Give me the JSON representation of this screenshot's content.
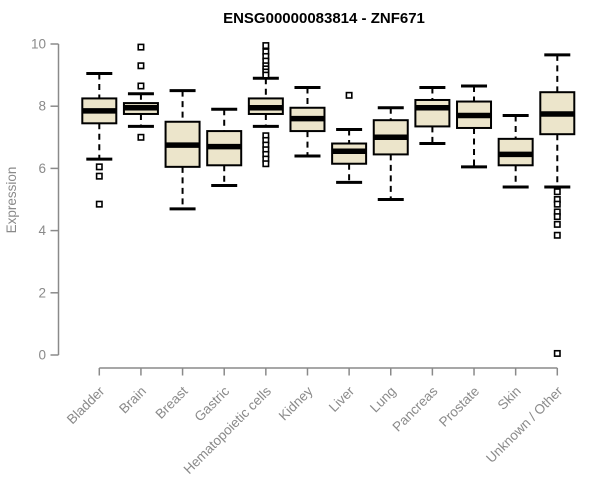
{
  "chart_data": {
    "type": "boxplot",
    "title": "ENSG00000083814 - ZNF671",
    "xlabel": "",
    "ylabel": "Expression",
    "ylim": [
      0,
      10
    ],
    "yticks": [
      0,
      2,
      4,
      6,
      8,
      10
    ],
    "grid": false,
    "legend": null,
    "categories": [
      "Bladder",
      "Brain",
      "Breast",
      "Gastric",
      "Hematopoietic cells",
      "Kidney",
      "Liver",
      "Lung",
      "Pancreas",
      "Prostate",
      "Skin",
      "Unknown / Other"
    ],
    "series": [
      {
        "name": "Bladder",
        "whisker_low": 6.3,
        "q1": 7.45,
        "median": 7.85,
        "q3": 8.25,
        "whisker_high": 9.05,
        "outliers": [
          6.05,
          5.75,
          4.85
        ]
      },
      {
        "name": "Brain",
        "whisker_low": 7.35,
        "q1": 7.75,
        "median": 7.95,
        "q3": 8.1,
        "whisker_high": 8.4,
        "outliers": [
          9.9,
          9.3,
          8.65,
          7.0
        ]
      },
      {
        "name": "Breast",
        "whisker_low": 4.7,
        "q1": 6.05,
        "median": 6.75,
        "q3": 7.5,
        "whisker_high": 8.5,
        "outliers": []
      },
      {
        "name": "Gastric",
        "whisker_low": 5.45,
        "q1": 6.1,
        "median": 6.7,
        "q3": 7.2,
        "whisker_high": 7.9,
        "outliers": []
      },
      {
        "name": "Hematopoietic cells",
        "whisker_low": 7.35,
        "q1": 7.75,
        "median": 7.95,
        "q3": 8.25,
        "whisker_high": 8.9,
        "outliers": [
          9.95,
          9.75,
          9.6,
          9.45,
          9.3,
          9.2,
          9.1,
          9.0,
          7.05,
          6.9,
          6.75,
          6.6,
          6.45,
          6.3,
          6.15
        ]
      },
      {
        "name": "Kidney",
        "whisker_low": 6.4,
        "q1": 7.2,
        "median": 7.6,
        "q3": 7.95,
        "whisker_high": 8.6,
        "outliers": []
      },
      {
        "name": "Liver",
        "whisker_low": 5.55,
        "q1": 6.15,
        "median": 6.55,
        "q3": 6.8,
        "whisker_high": 7.25,
        "outliers": [
          8.35
        ]
      },
      {
        "name": "Lung",
        "whisker_low": 5.0,
        "q1": 6.45,
        "median": 7.0,
        "q3": 7.55,
        "whisker_high": 7.95,
        "outliers": []
      },
      {
        "name": "Pancreas",
        "whisker_low": 6.8,
        "q1": 7.35,
        "median": 7.95,
        "q3": 8.2,
        "whisker_high": 8.6,
        "outliers": []
      },
      {
        "name": "Prostate",
        "whisker_low": 6.05,
        "q1": 7.3,
        "median": 7.7,
        "q3": 8.15,
        "whisker_high": 8.65,
        "outliers": []
      },
      {
        "name": "Skin",
        "whisker_low": 5.4,
        "q1": 6.1,
        "median": 6.45,
        "q3": 6.95,
        "whisker_high": 7.7,
        "outliers": []
      },
      {
        "name": "Unknown / Other",
        "whisker_low": 5.4,
        "q1": 7.1,
        "median": 7.75,
        "q3": 8.45,
        "whisker_high": 9.65,
        "outliers": [
          5.25,
          5.0,
          4.85,
          4.6,
          4.45,
          4.2,
          3.85,
          0.05
        ]
      }
    ]
  },
  "colors": {
    "background": "#ffffff",
    "box_fill": "#ece5cb",
    "box_border": "#000000",
    "median": "#000000",
    "whisker": "#000000",
    "outlier_border": "#000000",
    "outlier_fill": "#ffffff",
    "axis": "#8a8a8a",
    "tick_label": "#8a8a8a",
    "title": "#000000"
  }
}
